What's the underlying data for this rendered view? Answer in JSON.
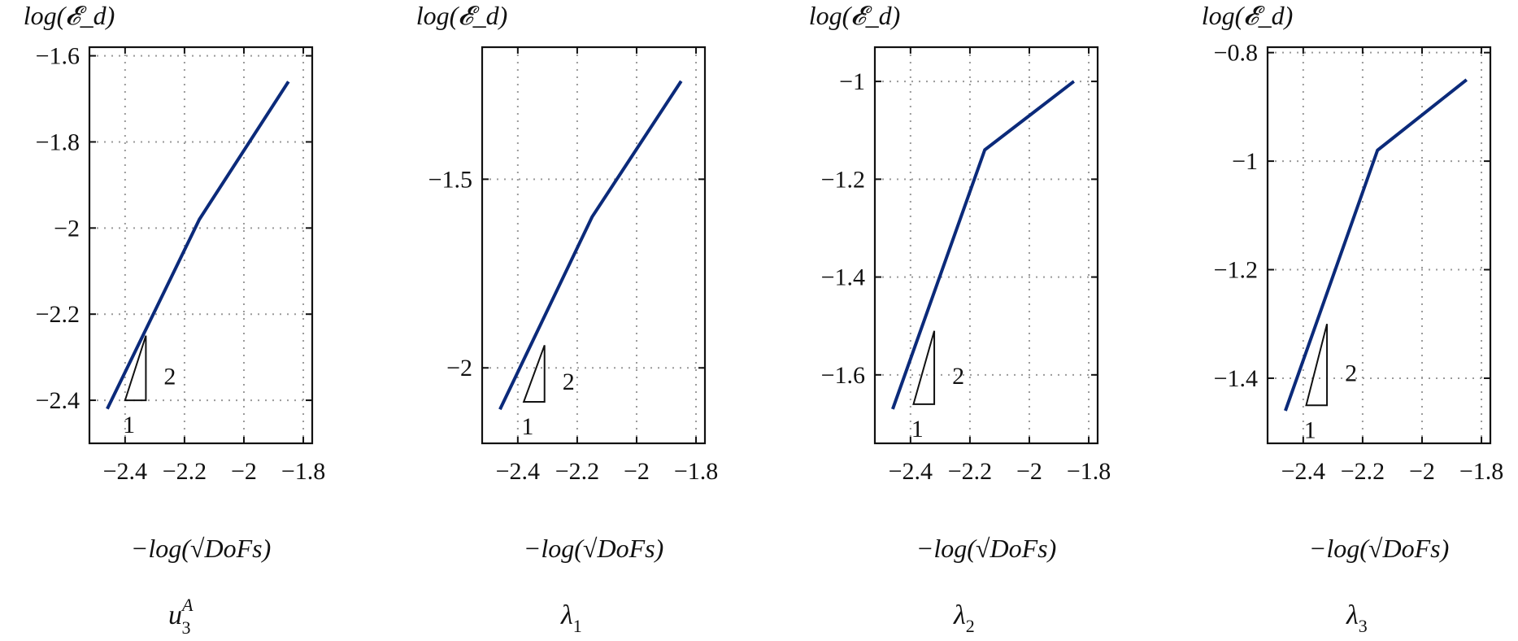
{
  "colors": {
    "series": "#0b2a7a"
  },
  "chart_data": [
    {
      "type": "line",
      "ylabel": "log(𝓔_d)",
      "xlabel": "−log(√DoFs)",
      "caption": "u₃ᴬ",
      "caption_main": "u",
      "caption_sub": "3",
      "caption_sup": "A",
      "grid": true,
      "xlim": [
        -2.52,
        -1.77
      ],
      "ylim": [
        -2.5,
        -1.58
      ],
      "xticks": [
        -2.4,
        -2.2,
        -2,
        -1.8
      ],
      "xtick_labels": [
        "−2.4",
        "−2.2",
        "−2",
        "−1.8"
      ],
      "yticks": [
        -2.4,
        -2.2,
        -2,
        -1.8,
        -1.6
      ],
      "ytick_labels": [
        "−2.4",
        "−2.2",
        "−2",
        "−1.8",
        "−1.6"
      ],
      "series": [
        {
          "x": [
            -2.46,
            -2.15,
            -1.85
          ],
          "y": [
            -2.42,
            -1.98,
            -1.66
          ]
        }
      ],
      "slope_triangle": {
        "rise_label": "2",
        "run_label": "1",
        "x": [
          -2.4,
          -2.33
        ],
        "y": [
          -2.4,
          -2.25
        ]
      }
    },
    {
      "type": "line",
      "ylabel": "log(𝓔_d)",
      "xlabel": "−log(√DoFs)",
      "caption": "λ₁",
      "caption_main": "λ",
      "caption_sub": "1",
      "caption_sup": "",
      "grid": true,
      "xlim": [
        -2.52,
        -1.77
      ],
      "ylim": [
        -2.2,
        -1.15
      ],
      "xticks": [
        -2.4,
        -2.2,
        -2,
        -1.8
      ],
      "xtick_labels": [
        "−2.4",
        "−2.2",
        "−2",
        "−1.8"
      ],
      "yticks": [
        -2.0,
        -1.5
      ],
      "ytick_labels": [
        "−2",
        "−1.5"
      ],
      "series": [
        {
          "x": [
            -2.46,
            -2.15,
            -1.85
          ],
          "y": [
            -2.11,
            -1.6,
            -1.24
          ]
        }
      ],
      "slope_triangle": {
        "rise_label": "2",
        "run_label": "1",
        "x": [
          -2.38,
          -2.31
        ],
        "y": [
          -2.09,
          -1.94
        ]
      }
    },
    {
      "type": "line",
      "ylabel": "log(𝓔_d)",
      "xlabel": "−log(√DoFs)",
      "caption": "λ₂",
      "caption_main": "λ",
      "caption_sub": "2",
      "caption_sup": "",
      "grid": true,
      "xlim": [
        -2.52,
        -1.77
      ],
      "ylim": [
        -1.74,
        -0.93
      ],
      "xticks": [
        -2.4,
        -2.2,
        -2,
        -1.8
      ],
      "xtick_labels": [
        "−2.4",
        "−2.2",
        "−2",
        "−1.8"
      ],
      "yticks": [
        -1.6,
        -1.4,
        -1.2,
        -1.0
      ],
      "ytick_labels": [
        "−1.6",
        "−1.4",
        "−1.2",
        "−1"
      ],
      "series": [
        {
          "x": [
            -2.46,
            -2.15,
            -1.85
          ],
          "y": [
            -1.67,
            -1.14,
            -1.0
          ]
        }
      ],
      "slope_triangle": {
        "rise_label": "2",
        "run_label": "1",
        "x": [
          -2.39,
          -2.32
        ],
        "y": [
          -1.66,
          -1.51
        ]
      }
    },
    {
      "type": "line",
      "ylabel": "log(𝓔_d)",
      "xlabel": "−log(√DoFs)",
      "caption": "λ₃",
      "caption_main": "λ",
      "caption_sub": "3",
      "caption_sup": "",
      "grid": true,
      "xlim": [
        -2.52,
        -1.77
      ],
      "ylim": [
        -1.52,
        -0.79
      ],
      "xticks": [
        -2.4,
        -2.2,
        -2,
        -1.8
      ],
      "xtick_labels": [
        "−2.4",
        "−2.2",
        "−2",
        "−1.8"
      ],
      "yticks": [
        -1.4,
        -1.2,
        -1.0,
        -0.8
      ],
      "ytick_labels": [
        "−1.4",
        "−1.2",
        "−1",
        "−0.8"
      ],
      "series": [
        {
          "x": [
            -2.46,
            -2.15,
            -1.85
          ],
          "y": [
            -1.46,
            -0.98,
            -0.85
          ]
        }
      ],
      "slope_triangle": {
        "rise_label": "2",
        "run_label": "1",
        "x": [
          -2.39,
          -2.32
        ],
        "y": [
          -1.45,
          -1.3
        ]
      }
    }
  ]
}
